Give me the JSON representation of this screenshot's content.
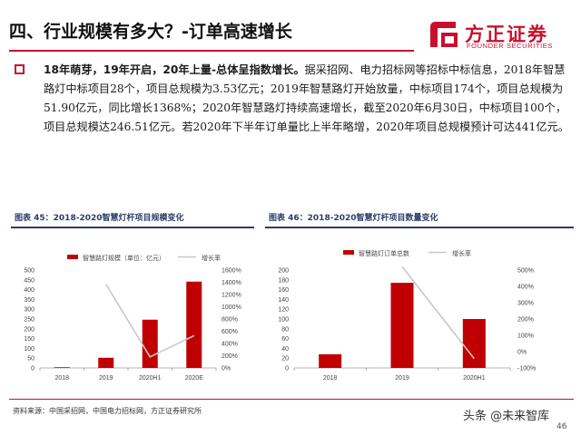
{
  "header": {
    "title": "四、行业规模有多大？-订单高速增长",
    "logo_name": "方正证券",
    "logo_sub": "FOUNDER SECURITIES",
    "accent_color": "#c8102e"
  },
  "body": {
    "bold_lead": "18年萌芽，19年开启，20年上量-总体呈指数增长。",
    "text": "据采招网、电力招标网等招标中标信息，2018年智慧路灯中标项目28个，项目总规模为3.53亿元；2019年智慧路灯开始放量，中标项目174个，项目总规模为51.90亿元，同比增长1368%；2020年智慧路灯持续高速增长，截至2020年6月30日，中标项目100个，项目总规模达246.51亿元。若2020年下半年订单量比上半年略增，2020年项目总规模预计可达441亿元。"
  },
  "figures": {
    "fig45_title": "图表 45：2018-2020智慧灯杆项目规模变化",
    "fig46_title": "图表 46：2018-2020智慧灯杆项目数量变化",
    "title_color": "#2c3e67"
  },
  "chart_data": [
    {
      "type": "bar",
      "title": "图表 45：2018-2020智慧灯杆项目规模变化",
      "categories": [
        "2018",
        "2019",
        "2020H1",
        "2020E"
      ],
      "series": [
        {
          "name": "智慧路灯规模（单位：亿元）",
          "kind": "bar",
          "axis": "left",
          "color": "#c00000",
          "values": [
            3.53,
            51.9,
            246.51,
            441
          ]
        },
        {
          "name": "增长率",
          "kind": "line",
          "axis": "right",
          "color": "#c8c8c8",
          "values": [
            null,
            1368,
            180,
            528
          ]
        }
      ],
      "y_left": {
        "min": 0,
        "max": 500,
        "ticks": [
          0,
          50,
          100,
          150,
          200,
          250,
          300,
          350,
          400,
          450,
          500
        ]
      },
      "y_right": {
        "min": 0,
        "max": 1600,
        "ticks": [
          0,
          200,
          400,
          600,
          800,
          1000,
          1200,
          1400,
          1600
        ],
        "suffix": "%"
      },
      "legend": "top",
      "grid": false
    },
    {
      "type": "bar",
      "title": "图表 46：2018-2020智慧灯杆项目数量变化",
      "categories": [
        "2018",
        "2019",
        "2020H1"
      ],
      "series": [
        {
          "name": "智慧路灯订单总数",
          "kind": "bar",
          "axis": "left",
          "color": "#c00000",
          "values": [
            28,
            174,
            100
          ]
        },
        {
          "name": "增长率",
          "kind": "line",
          "axis": "right",
          "color": "#c8c8c8",
          "values": [
            null,
            521,
            -43
          ]
        }
      ],
      "y_left": {
        "min": 0,
        "max": 200,
        "ticks": [
          0,
          20,
          40,
          60,
          80,
          100,
          120,
          140,
          160,
          180,
          200
        ]
      },
      "y_right": {
        "min": -100,
        "max": 500,
        "ticks": [
          -100,
          0,
          100,
          200,
          300,
          400,
          500
        ],
        "suffix": "%"
      },
      "legend": "top",
      "grid": false
    }
  ],
  "footer": {
    "source": "资料来源：中国采招网，中国电力招标网，方正证券研究所",
    "watermark": "头条 @未来智库",
    "page_number": "46"
  }
}
